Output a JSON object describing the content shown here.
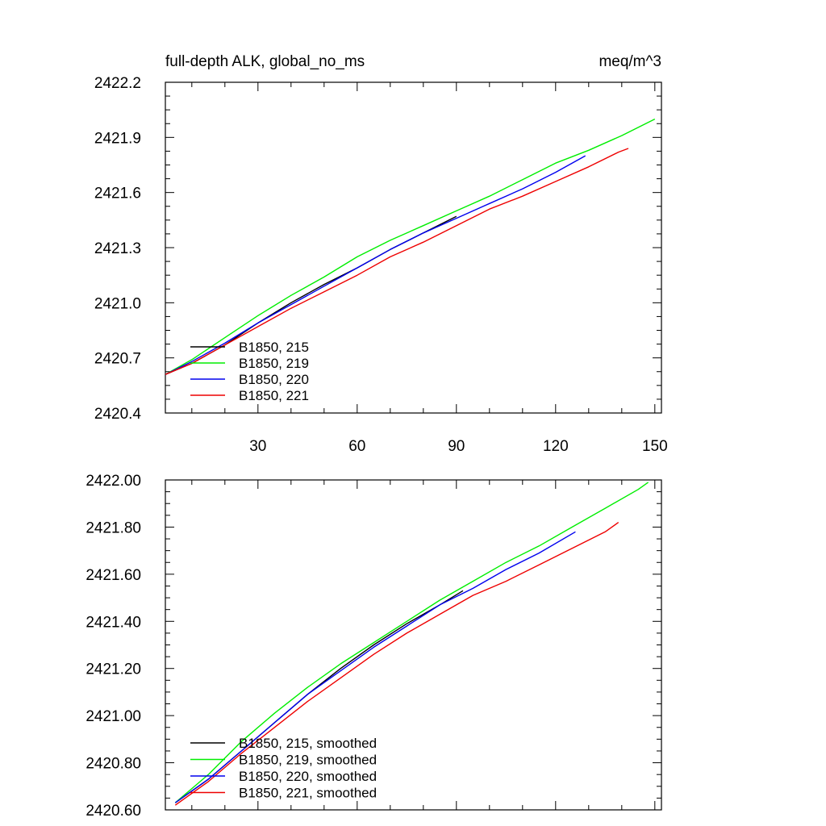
{
  "chart_data": [
    {
      "type": "line",
      "title": "full-depth ALK, global_no_ms",
      "units": "meq/m^3",
      "xlim": [
        2,
        152
      ],
      "ylim": [
        2420.4,
        2422.2
      ],
      "xticks": [
        30,
        60,
        90,
        120,
        150
      ],
      "xtick_labels": [
        "30",
        "60",
        "90",
        "120",
        "150"
      ],
      "yticks": [
        2420.4,
        2420.7,
        2421.0,
        2421.3,
        2421.6,
        2421.9,
        2422.2
      ],
      "ytick_labels": [
        "2420.4",
        "2420.7",
        "2421.0",
        "2421.3",
        "2421.6",
        "2421.9",
        "2422.2"
      ],
      "legend_position": "bottom-left",
      "series": [
        {
          "name": "B1850, 215",
          "color": "#000000",
          "x": [
            2,
            10,
            20,
            30,
            40,
            50,
            60,
            70,
            80,
            90
          ],
          "y": [
            2420.61,
            2420.67,
            2420.77,
            2420.89,
            2421.0,
            2421.1,
            2421.19,
            2421.29,
            2421.38,
            2421.47
          ]
        },
        {
          "name": "B1850, 219",
          "color": "#00ee00",
          "x": [
            2,
            10,
            20,
            30,
            40,
            50,
            60,
            70,
            80,
            90,
            100,
            110,
            120,
            130,
            140,
            150
          ],
          "y": [
            2420.61,
            2420.69,
            2420.81,
            2420.93,
            2421.04,
            2421.14,
            2421.25,
            2421.34,
            2421.42,
            2421.5,
            2421.58,
            2421.67,
            2421.76,
            2421.83,
            2421.91,
            2422.0
          ]
        },
        {
          "name": "B1850, 220",
          "color": "#0000ee",
          "x": [
            2,
            10,
            20,
            30,
            40,
            50,
            60,
            70,
            80,
            90,
            100,
            110,
            120,
            129
          ],
          "y": [
            2420.61,
            2420.68,
            2420.78,
            2420.89,
            2420.99,
            2421.09,
            2421.19,
            2421.29,
            2421.38,
            2421.46,
            2421.54,
            2421.62,
            2421.71,
            2421.8
          ]
        },
        {
          "name": "B1850, 221",
          "color": "#ee0000",
          "x": [
            2,
            10,
            20,
            30,
            40,
            50,
            60,
            70,
            80,
            90,
            100,
            110,
            120,
            130,
            139,
            142
          ],
          "y": [
            2420.61,
            2420.67,
            2420.77,
            2420.87,
            2420.97,
            2421.06,
            2421.15,
            2421.25,
            2421.33,
            2421.42,
            2421.51,
            2421.58,
            2421.66,
            2421.74,
            2421.82,
            2421.84
          ]
        }
      ]
    },
    {
      "type": "line",
      "xlim": [
        2,
        152
      ],
      "ylim": [
        2420.6,
        2422.0
      ],
      "xticks": [
        30,
        60,
        90,
        120,
        150
      ],
      "xtick_labels": [],
      "yticks": [
        2420.6,
        2420.8,
        2421.0,
        2421.2,
        2421.4,
        2421.6,
        2421.8,
        2422.0
      ],
      "ytick_labels": [
        "2420.60",
        "2420.80",
        "2421.00",
        "2421.20",
        "2421.40",
        "2421.60",
        "2421.80",
        "2422.00"
      ],
      "legend_position": "bottom-left",
      "series": [
        {
          "name": "B1850, 215, smoothed",
          "color": "#000000",
          "x": [
            5,
            15,
            25,
            35,
            45,
            55,
            65,
            75,
            85,
            92
          ],
          "y": [
            2420.63,
            2420.73,
            2420.85,
            2420.97,
            2421.09,
            2421.2,
            2421.3,
            2421.39,
            2421.47,
            2421.53
          ]
        },
        {
          "name": "B1850, 219, smoothed",
          "color": "#00ee00",
          "x": [
            5,
            15,
            25,
            35,
            45,
            55,
            65,
            75,
            85,
            95,
            105,
            115,
            125,
            135,
            145,
            148
          ],
          "y": [
            2420.63,
            2420.75,
            2420.89,
            2421.01,
            2421.12,
            2421.22,
            2421.31,
            2421.4,
            2421.49,
            2421.57,
            2421.65,
            2421.72,
            2421.8,
            2421.88,
            2421.96,
            2421.99
          ]
        },
        {
          "name": "B1850, 220, smoothed",
          "color": "#0000ee",
          "x": [
            5,
            15,
            25,
            35,
            45,
            55,
            65,
            75,
            85,
            95,
            105,
            115,
            126
          ],
          "y": [
            2420.63,
            2420.73,
            2420.85,
            2420.97,
            2421.09,
            2421.19,
            2421.29,
            2421.38,
            2421.47,
            2421.54,
            2421.62,
            2421.69,
            2421.78
          ]
        },
        {
          "name": "B1850, 221, smoothed",
          "color": "#ee0000",
          "x": [
            5,
            15,
            25,
            35,
            45,
            55,
            65,
            75,
            85,
            95,
            105,
            115,
            125,
            135,
            139
          ],
          "y": [
            2420.62,
            2420.72,
            2420.84,
            2420.95,
            2421.06,
            2421.16,
            2421.26,
            2421.35,
            2421.43,
            2421.51,
            2421.57,
            2421.64,
            2421.71,
            2421.78,
            2421.82
          ]
        }
      ]
    }
  ]
}
